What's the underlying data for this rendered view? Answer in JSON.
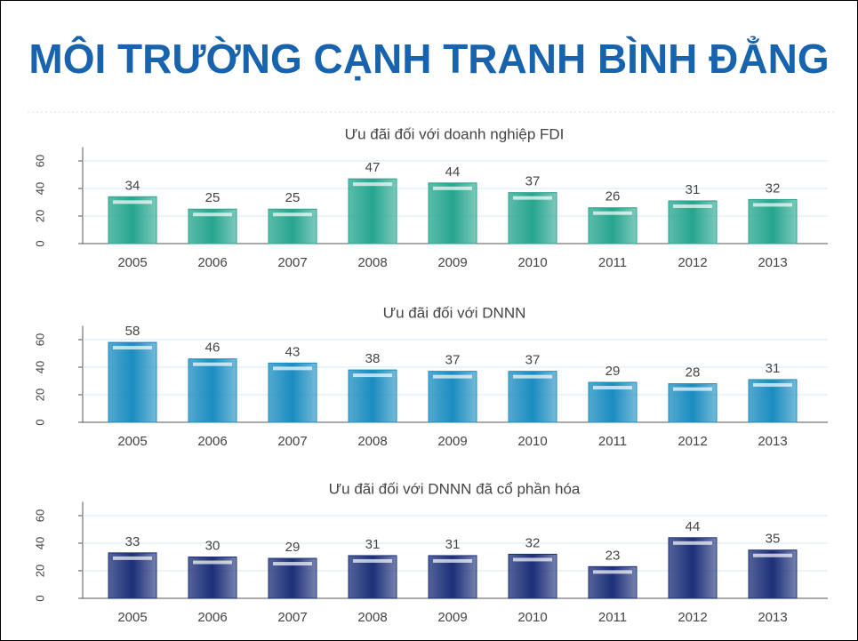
{
  "title": "MÔI TRƯỜNG CẠNH TRANH BÌNH ĐẲNG",
  "chart_data": [
    {
      "type": "bar",
      "title": "Ưu đãi đối với doanh nghiệp FDI",
      "categories": [
        "2005",
        "2006",
        "2007",
        "2008",
        "2009",
        "2010",
        "2011",
        "2012",
        "2013"
      ],
      "values": [
        34,
        25,
        25,
        47,
        44,
        37,
        26,
        31,
        32
      ],
      "color": "#26a58e",
      "ylim": [
        0,
        70
      ],
      "yticks": [
        0,
        20,
        40,
        60
      ],
      "grid": true
    },
    {
      "type": "bar",
      "title": "Ưu đãi đối với DNNN",
      "categories": [
        "2005",
        "2006",
        "2007",
        "2008",
        "2009",
        "2010",
        "2011",
        "2012",
        "2013"
      ],
      "values": [
        58,
        46,
        43,
        38,
        37,
        37,
        29,
        28,
        31
      ],
      "color": "#1a8cc0",
      "ylim": [
        0,
        70
      ],
      "yticks": [
        0,
        20,
        40,
        60
      ],
      "grid": true
    },
    {
      "type": "bar",
      "title": "Ưu đãi đối với DNNN đã cổ phần hóa",
      "categories": [
        "2005",
        "2006",
        "2007",
        "2008",
        "2009",
        "2010",
        "2011",
        "2012",
        "2013"
      ],
      "values": [
        33,
        30,
        29,
        31,
        31,
        32,
        23,
        44,
        35
      ],
      "color": "#1c2f78",
      "ylim": [
        0,
        70
      ],
      "yticks": [
        0,
        20,
        40,
        60
      ],
      "grid": true
    }
  ]
}
